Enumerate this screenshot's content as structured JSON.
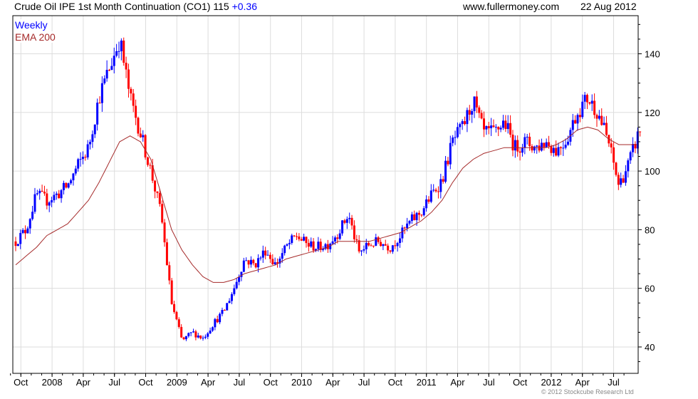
{
  "header": {
    "title": "Crude Oil IPE 1st Month Continuation (CO1)",
    "last": "115",
    "change": "+0.36",
    "site": "www.fullermoney.com",
    "date": "22 Aug 2012"
  },
  "copyright": "© 2012 Stockcube Research Ltd",
  "colors": {
    "up": "#0000ff",
    "down": "#ff0000",
    "ema": "#a52a2a",
    "grid": "#dddddd"
  },
  "chart_data": {
    "type": "candlestick",
    "title": "Crude Oil IPE 1st Month Continuation (CO1)",
    "legend": [
      "Weekly",
      "EMA 200"
    ],
    "legend_position": "top-left",
    "ylim": [
      31,
      153
    ],
    "y_ticks": [
      40,
      60,
      80,
      100,
      120,
      140
    ],
    "y_axis_side": "right",
    "x_tick_labels": [
      "Oct",
      "2008",
      "Apr",
      "Jul",
      "Oct",
      "2009",
      "Apr",
      "Jul",
      "Oct",
      "2010",
      "Apr",
      "Jul",
      "Oct",
      "2011",
      "Apr",
      "Jul",
      "Oct",
      "2012",
      "Apr",
      "Jul"
    ],
    "x_tick_month_index": [
      1,
      4,
      7,
      10,
      13,
      16,
      19,
      22,
      25,
      28,
      31,
      34,
      37,
      40,
      43,
      46,
      49,
      52,
      55,
      58
    ],
    "period_start": "Sep 2007",
    "period_end": "Aug 2012",
    "monthly_close": [
      76,
      80,
      92,
      90,
      92,
      95,
      102,
      108,
      125,
      135,
      145,
      125,
      113,
      100,
      85,
      55,
      42,
      45,
      43,
      48,
      52,
      60,
      70,
      68,
      73,
      68,
      74,
      78,
      75,
      74,
      75,
      79,
      85,
      72,
      75,
      76,
      74,
      78,
      83,
      86,
      92,
      97,
      110,
      115,
      124,
      113,
      113,
      117,
      108,
      110,
      108,
      110,
      107,
      111,
      120,
      125,
      120,
      110,
      95,
      103,
      114
    ],
    "ema200_monthly": [
      68,
      71,
      74,
      78,
      80,
      82,
      86,
      90,
      96,
      103,
      110,
      112,
      110,
      104,
      92,
      80,
      73,
      68,
      64,
      62,
      62,
      63,
      65,
      66,
      67,
      68,
      70,
      71,
      72,
      73,
      74,
      76,
      76,
      76,
      76,
      77,
      78,
      79,
      81,
      83,
      86,
      90,
      96,
      101,
      104,
      106,
      107,
      108,
      108,
      108,
      108,
      108,
      109,
      111,
      114,
      115,
      114,
      111,
      109,
      109,
      109
    ]
  }
}
